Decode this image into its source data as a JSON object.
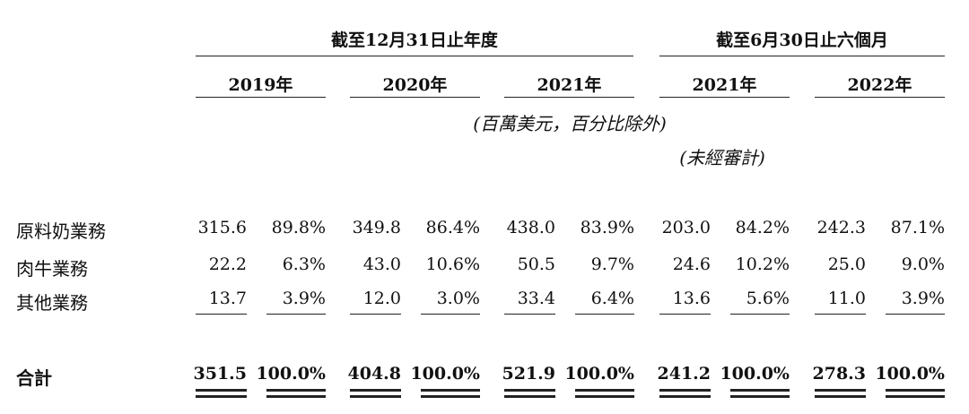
{
  "header": {
    "group_full_year": "截至12月31日止年度",
    "group_six_months": "截至6月30日止六個月",
    "years": [
      "2019年",
      "2020年",
      "2021年",
      "2021年",
      "2022年"
    ],
    "units_note": "(百萬美元，百分比除外)",
    "unaudited_note": "(未經審計)"
  },
  "rows": [
    {
      "label": "原料奶業務",
      "cells": [
        "315.6",
        "89.8%",
        "349.8",
        "86.4%",
        "438.0",
        "83.9%",
        "203.0",
        "84.2%",
        "242.3",
        "87.1%"
      ]
    },
    {
      "label": "肉牛業務",
      "cells": [
        "22.2",
        "6.3%",
        "43.0",
        "10.6%",
        "50.5",
        "9.7%",
        "24.6",
        "10.2%",
        "25.0",
        "9.0%"
      ]
    },
    {
      "label": "其他業務",
      "cells": [
        "13.7",
        "3.9%",
        "12.0",
        "3.0%",
        "33.4",
        "6.4%",
        "13.6",
        "5.6%",
        "11.0",
        "3.9%"
      ]
    }
  ],
  "total": {
    "label": "合計",
    "cells": [
      "351.5",
      "100.0%",
      "404.8",
      "100.0%",
      "521.9",
      "100.0%",
      "241.2",
      "100.0%",
      "278.3",
      "100.0%"
    ]
  }
}
